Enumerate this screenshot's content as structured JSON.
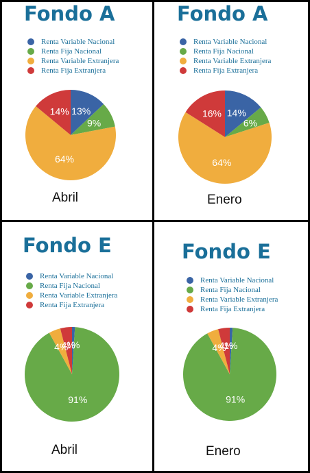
{
  "palette": {
    "Renta Variable Nacional": "#3a64a5",
    "Renta Fija Nacional": "#67aa48",
    "Renta Variable Extranjera": "#f0ad3e",
    "Renta Fija Extranjera": "#cf3a3a"
  },
  "legend_labels": [
    "Renta Variable Nacional",
    "Renta Fija Nacional",
    "Renta Variable Extranjera",
    "Renta Fija Extranjera"
  ],
  "chart_data": [
    {
      "type": "pie",
      "title": "Fondo A",
      "period": "Abril",
      "categories": [
        "Renta Variable Nacional",
        "Renta Fija Nacional",
        "Renta Variable Extranjera",
        "Renta Fija Extranjera"
      ],
      "values": [
        13,
        9,
        64,
        14
      ],
      "data_labels": [
        "13%",
        "9%",
        "64%",
        "14%"
      ],
      "legend_placement": "top"
    },
    {
      "type": "pie",
      "title": "Fondo A",
      "period": "Enero",
      "categories": [
        "Renta Variable Nacional",
        "Renta Fija Nacional",
        "Renta Variable Extranjera",
        "Renta Fija Extranjera"
      ],
      "values": [
        14,
        6,
        64,
        16
      ],
      "data_labels": [
        "14%",
        "6%",
        "64%",
        "16%"
      ],
      "legend_placement": "top"
    },
    {
      "type": "pie",
      "title": "Fondo E",
      "period": "Abril",
      "categories": [
        "Renta Variable Nacional",
        "Renta Fija Nacional",
        "Renta Variable Extranjera",
        "Renta Fija Extranjera"
      ],
      "values": [
        1,
        91,
        4,
        4
      ],
      "data_labels": [
        "1%",
        "91%",
        "4%",
        "4%"
      ],
      "legend_placement": "top"
    },
    {
      "type": "pie",
      "title": "Fondo E",
      "period": "Enero",
      "categories": [
        "Renta Variable Nacional",
        "Renta Fija Nacional",
        "Renta Variable Extranjera",
        "Renta Fija Extranjera"
      ],
      "values": [
        1,
        91,
        4,
        4
      ],
      "data_labels": [
        "1%",
        "91%",
        "4%",
        "4%"
      ],
      "legend_placement": "top"
    }
  ]
}
